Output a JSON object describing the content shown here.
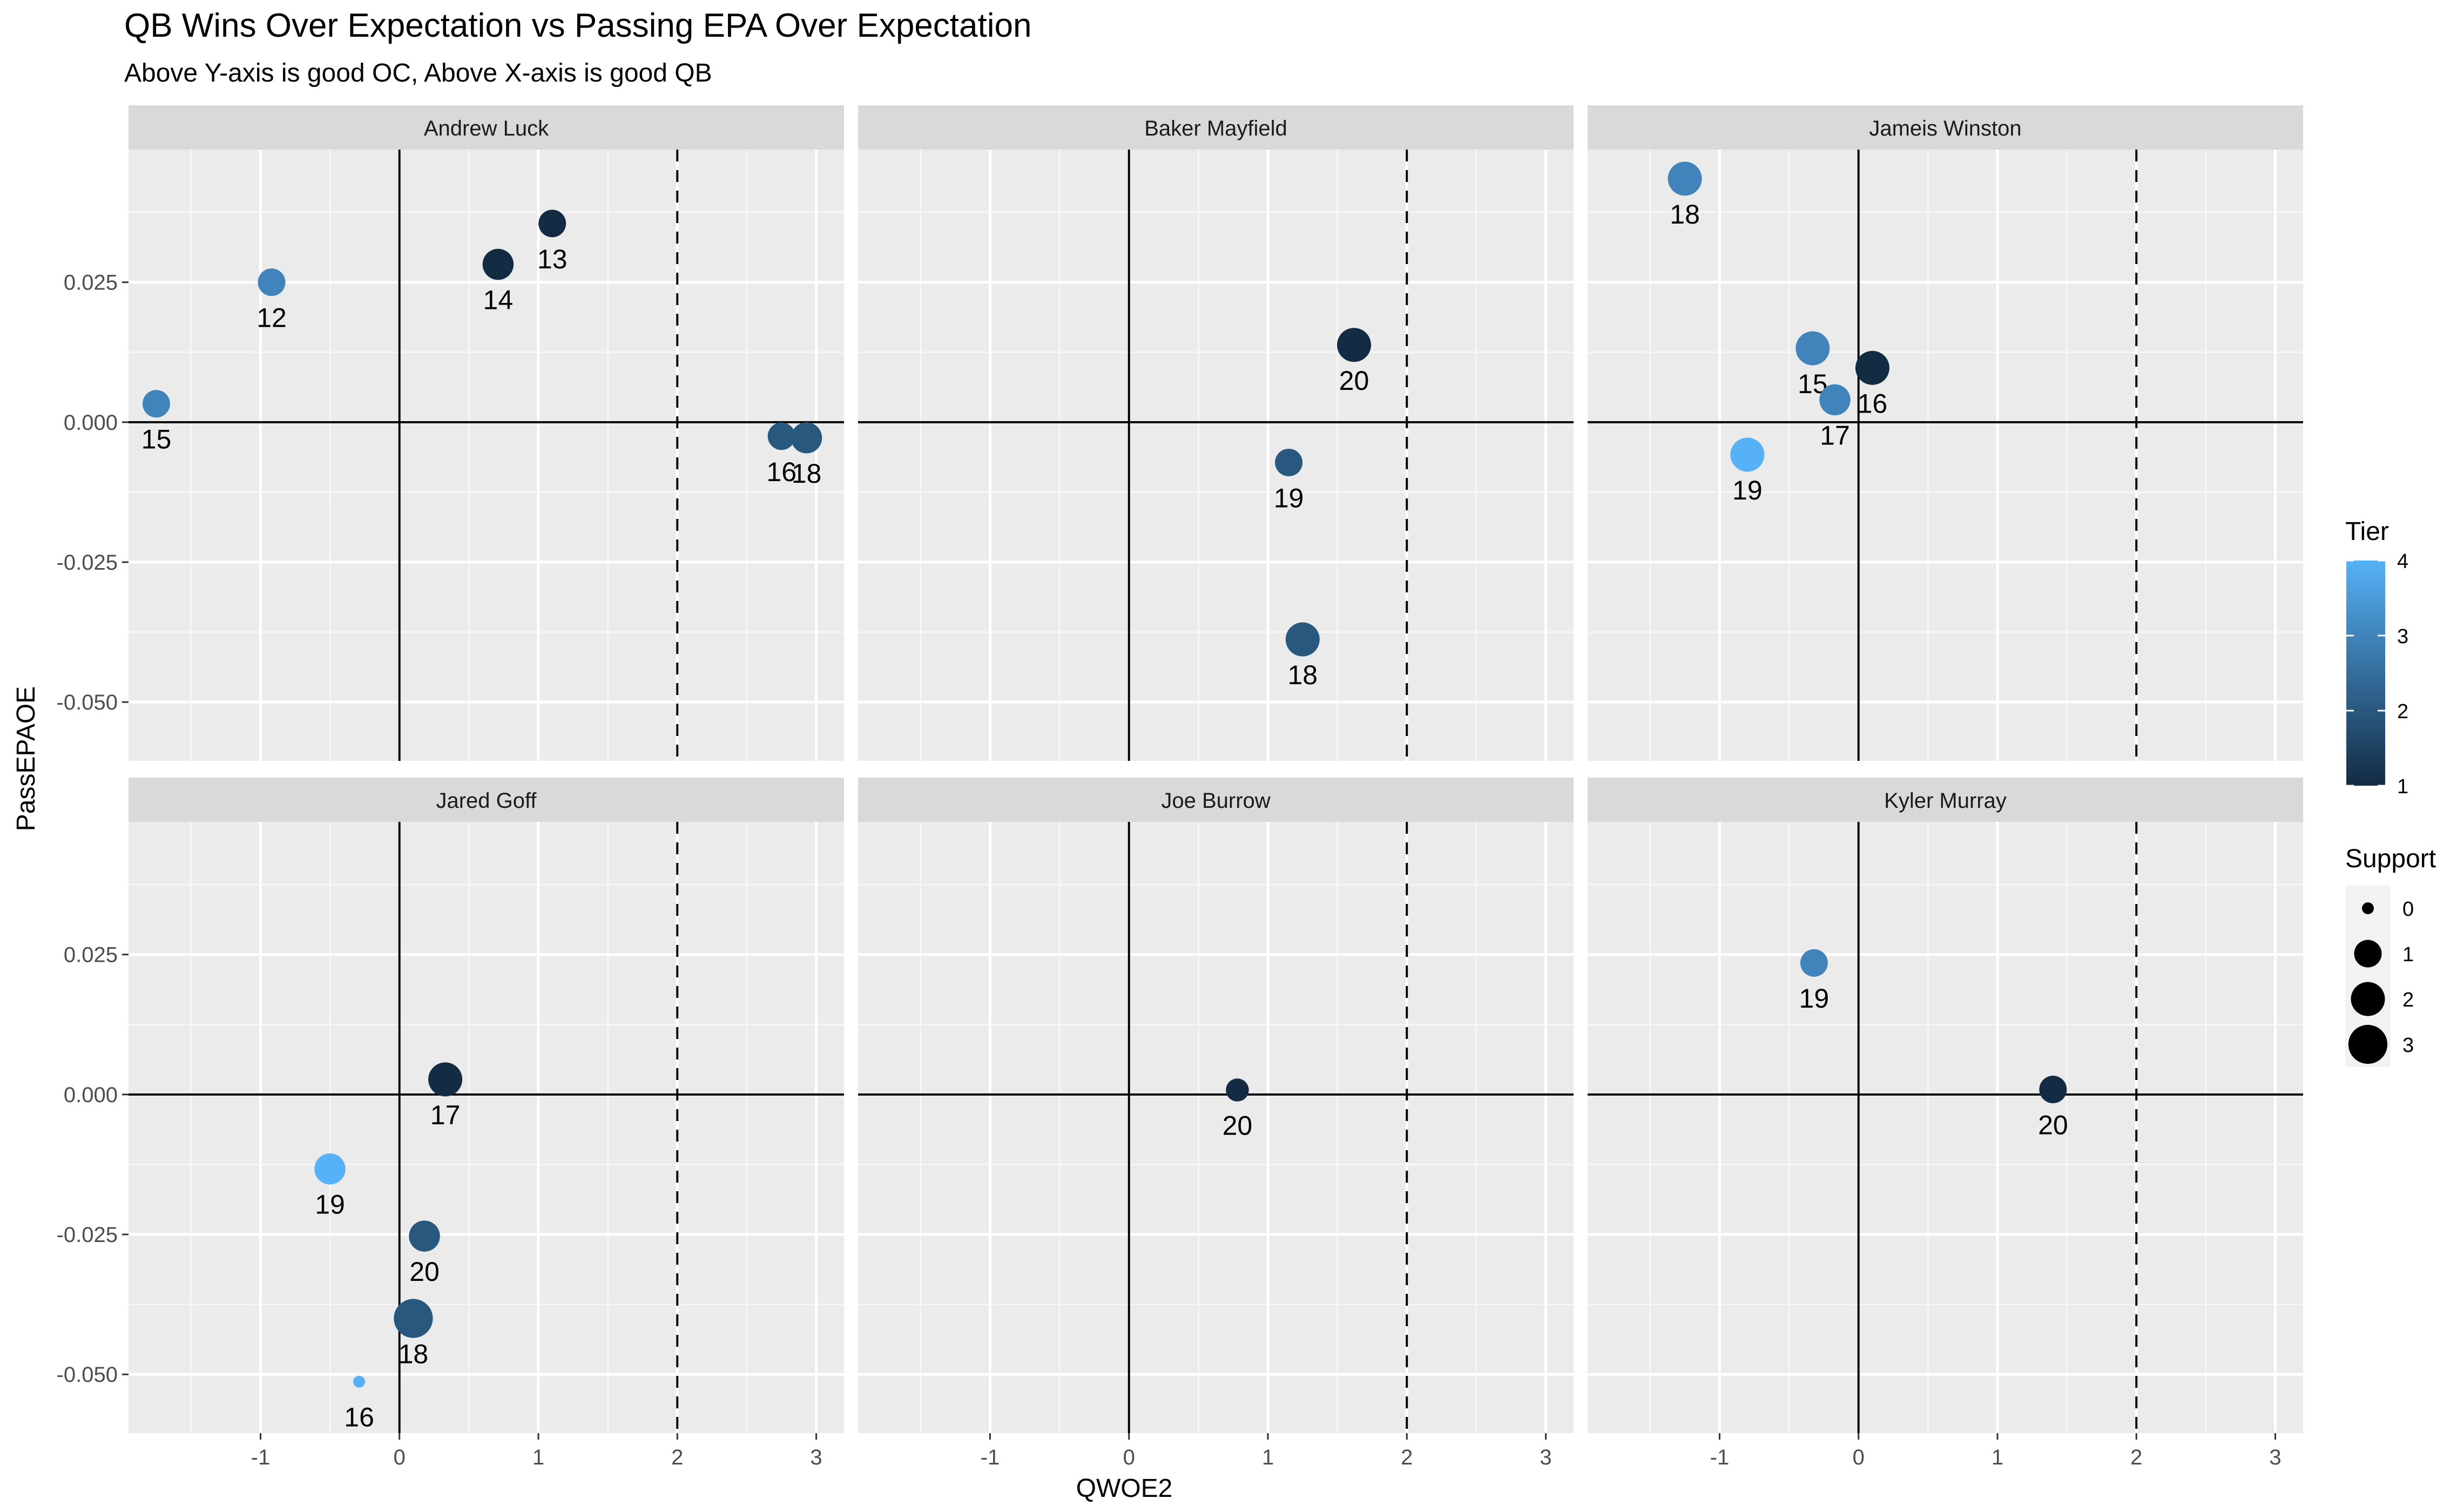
{
  "chart_data": {
    "type": "scatter",
    "title": "QB Wins Over Expectation vs Passing EPA Over Expectation",
    "subtitle": "Above Y-axis is good OC, Above X-axis is good QB",
    "xlabel": "QWOE2",
    "ylabel": "PassEPAOE",
    "xlim": [
      -1.95,
      3.2
    ],
    "ylim": [
      -0.0605,
      0.0487
    ],
    "x_ticks": [
      -1,
      0,
      1,
      2,
      3
    ],
    "y_ticks": [
      -0.05,
      -0.025,
      0.0,
      0.025
    ],
    "x_tick_labels": [
      "-1",
      "0",
      "1",
      "2",
      "3"
    ],
    "y_tick_labels": [
      "-0.050",
      "-0.025",
      "0.000",
      "0.025"
    ],
    "hline": 0,
    "vline": 0,
    "dashed_vline": 2,
    "grid": true,
    "legend_position": "right",
    "panels": [
      {
        "name": "Andrew Luck",
        "points": [
          {
            "x": -1.75,
            "y": 0.0033,
            "label": "15",
            "tier": 3,
            "support": 1
          },
          {
            "x": -0.92,
            "y": 0.025,
            "label": "12",
            "tier": 3,
            "support": 1
          },
          {
            "x": 0.71,
            "y": 0.0282,
            "label": "14",
            "tier": 1,
            "support": 1.5
          },
          {
            "x": 1.1,
            "y": 0.0355,
            "label": "13",
            "tier": 1,
            "support": 1
          },
          {
            "x": 2.75,
            "y": -0.0025,
            "label": "16",
            "tier": 2,
            "support": 1
          },
          {
            "x": 2.93,
            "y": -0.0028,
            "label": "18",
            "tier": 2,
            "support": 1.5
          }
        ]
      },
      {
        "name": "Baker Mayfield",
        "points": [
          {
            "x": 1.62,
            "y": 0.0138,
            "label": "20",
            "tier": 1,
            "support": 2
          },
          {
            "x": 1.15,
            "y": -0.0072,
            "label": "19",
            "tier": 2,
            "support": 1
          },
          {
            "x": 1.25,
            "y": -0.0388,
            "label": "18",
            "tier": 2,
            "support": 2
          }
        ]
      },
      {
        "name": "Jameis Winston",
        "points": [
          {
            "x": -1.25,
            "y": 0.0435,
            "label": "18",
            "tier": 3,
            "support": 2
          },
          {
            "x": -0.33,
            "y": 0.0132,
            "label": "15",
            "tier": 3,
            "support": 2
          },
          {
            "x": 0.1,
            "y": 0.0097,
            "label": "16",
            "tier": 1,
            "support": 2
          },
          {
            "x": -0.17,
            "y": 0.004,
            "label": "17",
            "tier": 3,
            "support": 1.5
          },
          {
            "x": -0.8,
            "y": -0.0058,
            "label": "19",
            "tier": 4,
            "support": 2
          }
        ]
      },
      {
        "name": "Jared Goff",
        "points": [
          {
            "x": 0.33,
            "y": 0.0027,
            "label": "17",
            "tier": 1,
            "support": 2
          },
          {
            "x": -0.5,
            "y": -0.0133,
            "label": "19",
            "tier": 4,
            "support": 1.5
          },
          {
            "x": 0.18,
            "y": -0.0253,
            "label": "20",
            "tier": 2,
            "support": 1.5
          },
          {
            "x": 0.1,
            "y": -0.04,
            "label": "18",
            "tier": 2,
            "support": 3
          },
          {
            "x": -0.29,
            "y": -0.0513,
            "label": "16",
            "tier": 4,
            "support": 0
          }
        ]
      },
      {
        "name": "Joe Burrow",
        "points": [
          {
            "x": 0.78,
            "y": 0.0008,
            "label": "20",
            "tier": 1,
            "support": 0.5
          }
        ]
      },
      {
        "name": "Kyler Murray",
        "points": [
          {
            "x": -0.32,
            "y": 0.0235,
            "label": "19",
            "tier": 3,
            "support": 1
          },
          {
            "x": 1.4,
            "y": 0.0009,
            "label": "20",
            "tier": 1,
            "support": 1
          }
        ]
      }
    ],
    "legend": {
      "tier": {
        "title": "Tier",
        "breaks": [
          1,
          2,
          3,
          4
        ],
        "labels": [
          "1",
          "2",
          "3",
          "4"
        ],
        "low_color": "#132B43",
        "high_color": "#56B1F7"
      },
      "support": {
        "title": "Support",
        "breaks": [
          0,
          1,
          2,
          3
        ],
        "labels": [
          "0",
          "1",
          "2",
          "3"
        ]
      }
    }
  }
}
